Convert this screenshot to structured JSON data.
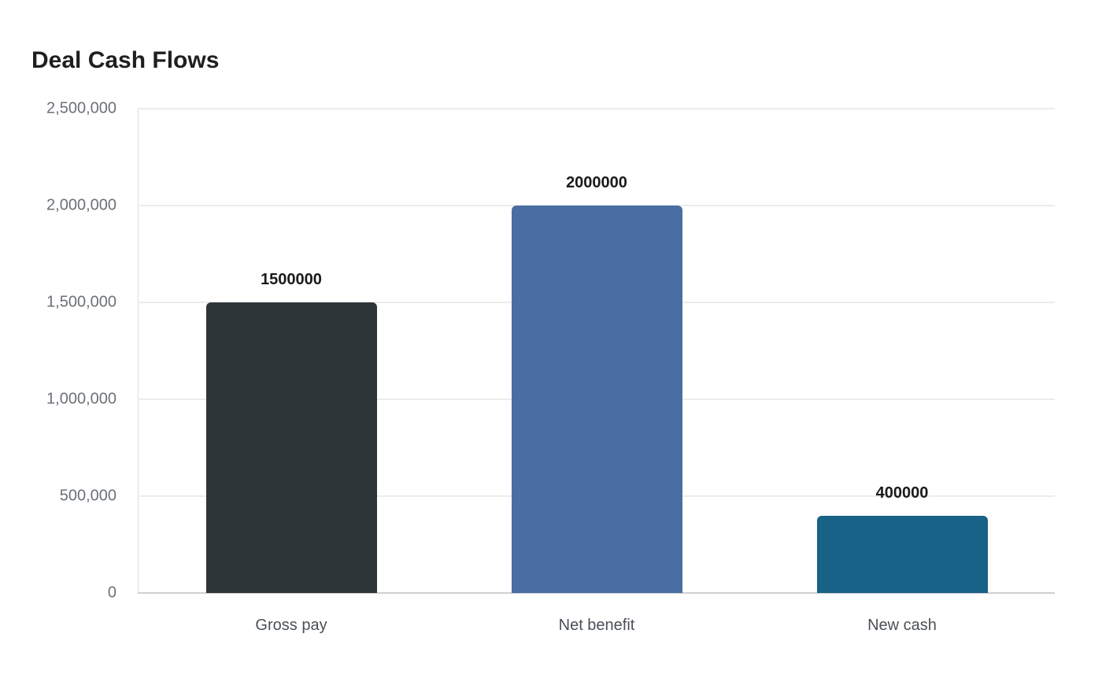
{
  "title": "Deal Cash Flows",
  "chart_data": {
    "type": "bar",
    "title": "Deal Cash Flows",
    "xlabel": "",
    "ylabel": "",
    "categories": [
      "Gross pay",
      "Net benefit",
      "New cash"
    ],
    "values": [
      1500000,
      2000000,
      400000
    ],
    "value_labels": [
      "1500000",
      "2000000",
      "400000"
    ],
    "colors": [
      "#2e3538",
      "#4a6ea3",
      "#186187"
    ],
    "ylim": [
      0,
      2500000
    ],
    "yticks": [
      0,
      500000,
      1000000,
      1500000,
      2000000,
      2500000
    ],
    "ytick_labels": [
      "0",
      "500,000",
      "1,000,000",
      "1,500,000",
      "2,000,000",
      "2,500,000"
    ],
    "grid": true,
    "legend": "none"
  }
}
